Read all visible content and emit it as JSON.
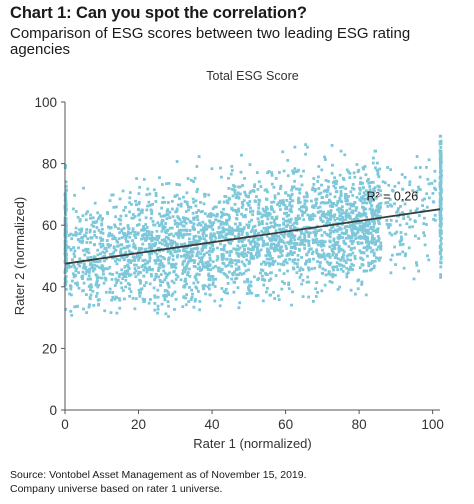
{
  "header": {
    "title": "Chart 1: Can you spot the correlation?",
    "subtitle": "Comparison of ESG scores between two leading ESG rating agencies"
  },
  "footer": {
    "source_line1": "Source: Vontobel Asset Management as of November 15, 2019.",
    "source_line2": "Company universe based on rater 1 universe."
  },
  "colors": {
    "points": "#7cc7d9",
    "trend": "#3a3a3a",
    "axis": "#555555"
  },
  "chart_data": {
    "type": "scatter",
    "title": "Total ESG Score",
    "xlabel": "Rater 1 (normalized)",
    "ylabel": "Rater 2 (normalized)",
    "xlim": [
      0,
      102
    ],
    "ylim": [
      0,
      100
    ],
    "x_ticks": [
      0,
      20,
      40,
      60,
      80,
      100
    ],
    "y_ticks": [
      0,
      20,
      40,
      60,
      80,
      100
    ],
    "grid": false,
    "point_shape": "square",
    "trendline": {
      "x": [
        0,
        102
      ],
      "y": [
        47.5,
        65.2
      ]
    },
    "r_squared_label": "R² = 0.26",
    "point_cloud_summary": {
      "n_points": 3200,
      "x_range": [
        0,
        102
      ],
      "y_range": [
        30,
        94
      ],
      "dense_x_band": [
        1,
        86
      ],
      "vertical_columns_at_x": [
        0,
        102
      ]
    }
  }
}
